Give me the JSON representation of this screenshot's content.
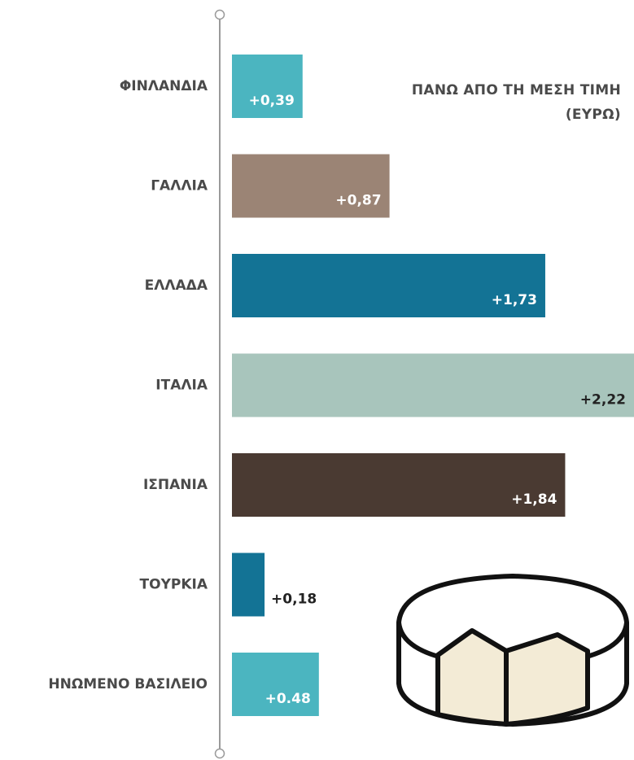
{
  "chart_data": {
    "type": "bar",
    "orientation": "horizontal",
    "title": "ΠΑΝΩ ΑΠΟ ΤΗ ΜΕΣΗ ΤΙΜΗ (ΕΥΡΩ)",
    "categories": [
      "ΦΙΝΛΑΝΔΙΑ",
      "ΓΑΛΛΙΑ",
      "ΕΛΛΑΔΑ",
      "ΙΤΑΛΙΑ",
      "ΙΣΠΑΝΙΑ",
      "ΤΟΥΡΚΙΑ",
      "ΗΝΩΜΕΝΟ ΒΑΣΙΛΕΙΟ"
    ],
    "values": [
      0.39,
      0.87,
      1.73,
      2.22,
      1.84,
      0.18,
      0.48
    ],
    "value_labels": [
      "+0,39",
      "+0,87",
      "+1,73",
      "+2,22",
      "+1,84",
      "+0,18",
      "+0.48"
    ],
    "colors": [
      "#4bb5c0",
      "#9b8475",
      "#137395",
      "#a8c5bc",
      "#4a3a32",
      "#137395",
      "#4bb5c0"
    ]
  }
}
